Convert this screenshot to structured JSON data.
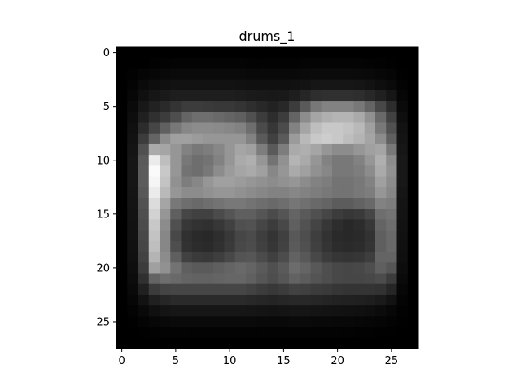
{
  "chart_data": {
    "type": "heatmap",
    "title": "drums_1",
    "colormap": "gray",
    "x_ticks": [
      "0",
      "5",
      "10",
      "15",
      "20",
      "25"
    ],
    "y_ticks": [
      "0",
      "5",
      "10",
      "15",
      "20",
      "25"
    ],
    "x_range": [
      -0.5,
      27.5
    ],
    "y_range": [
      -0.5,
      27.5
    ],
    "value_range": [
      0,
      255
    ],
    "z": [
      [
        0,
        0,
        0,
        0,
        0,
        0,
        0,
        0,
        0,
        0,
        0,
        0,
        0,
        0,
        0,
        0,
        0,
        0,
        0,
        0,
        0,
        0,
        0,
        0,
        0,
        0,
        0,
        0
      ],
      [
        0,
        0,
        0,
        2,
        3,
        4,
        4,
        4,
        4,
        4,
        4,
        4,
        3,
        3,
        3,
        3,
        3,
        4,
        4,
        4,
        4,
        4,
        4,
        3,
        2,
        1,
        0,
        0
      ],
      [
        0,
        2,
        5,
        7,
        9,
        10,
        10,
        10,
        10,
        10,
        10,
        10,
        9,
        9,
        9,
        9,
        9,
        10,
        11,
        11,
        11,
        11,
        10,
        9,
        7,
        5,
        1,
        0
      ],
      [
        0,
        4,
        10,
        14,
        16,
        18,
        18,
        18,
        18,
        18,
        18,
        17,
        16,
        16,
        16,
        16,
        17,
        19,
        22,
        22,
        22,
        22,
        21,
        18,
        14,
        10,
        3,
        0
      ],
      [
        0,
        7,
        16,
        22,
        26,
        30,
        30,
        30,
        30,
        30,
        30,
        28,
        26,
        25,
        24,
        25,
        30,
        38,
        46,
        48,
        48,
        48,
        46,
        40,
        32,
        22,
        6,
        0
      ],
      [
        0,
        10,
        24,
        34,
        42,
        52,
        60,
        60,
        58,
        56,
        56,
        52,
        46,
        40,
        34,
        40,
        60,
        90,
        120,
        130,
        130,
        130,
        120,
        100,
        72,
        45,
        10,
        0
      ],
      [
        0,
        13,
        32,
        48,
        60,
        78,
        100,
        110,
        110,
        105,
        100,
        95,
        80,
        60,
        45,
        60,
        100,
        140,
        165,
        175,
        180,
        180,
        170,
        145,
        105,
        65,
        14,
        0
      ],
      [
        0,
        16,
        44,
        70,
        96,
        120,
        135,
        140,
        140,
        138,
        135,
        130,
        110,
        75,
        55,
        75,
        130,
        165,
        190,
        200,
        200,
        195,
        185,
        160,
        120,
        80,
        18,
        0
      ],
      [
        0,
        18,
        60,
        100,
        140,
        160,
        160,
        155,
        150,
        150,
        150,
        150,
        130,
        90,
        65,
        90,
        155,
        185,
        200,
        205,
        200,
        190,
        180,
        165,
        140,
        95,
        20,
        0
      ],
      [
        0,
        20,
        80,
        170,
        165,
        150,
        130,
        120,
        125,
        135,
        150,
        165,
        160,
        125,
        90,
        125,
        170,
        175,
        165,
        150,
        140,
        140,
        150,
        160,
        165,
        120,
        22,
        0
      ],
      [
        0,
        22,
        90,
        235,
        190,
        150,
        120,
        110,
        115,
        130,
        150,
        170,
        175,
        150,
        115,
        145,
        180,
        170,
        150,
        130,
        120,
        120,
        130,
        150,
        175,
        140,
        24,
        0
      ],
      [
        0,
        22,
        92,
        250,
        200,
        150,
        115,
        110,
        120,
        140,
        155,
        165,
        170,
        160,
        135,
        150,
        170,
        160,
        145,
        135,
        120,
        120,
        125,
        140,
        170,
        145,
        24,
        0
      ],
      [
        0,
        22,
        92,
        245,
        195,
        145,
        125,
        135,
        150,
        160,
        160,
        155,
        150,
        145,
        140,
        145,
        150,
        140,
        130,
        125,
        115,
        115,
        120,
        130,
        160,
        140,
        24,
        0
      ],
      [
        0,
        21,
        88,
        235,
        185,
        150,
        140,
        140,
        145,
        150,
        150,
        145,
        140,
        135,
        130,
        130,
        135,
        130,
        125,
        120,
        115,
        115,
        120,
        125,
        150,
        135,
        22,
        0
      ],
      [
        0,
        20,
        82,
        220,
        165,
        120,
        110,
        105,
        110,
        115,
        120,
        120,
        115,
        110,
        105,
        110,
        118,
        112,
        105,
        100,
        92,
        92,
        98,
        105,
        130,
        125,
        20,
        0
      ],
      [
        0,
        19,
        78,
        210,
        150,
        95,
        70,
        65,
        65,
        75,
        85,
        95,
        95,
        85,
        75,
        85,
        100,
        90,
        80,
        70,
        60,
        55,
        58,
        70,
        110,
        115,
        19,
        0
      ],
      [
        0,
        18,
        75,
        200,
        140,
        80,
        55,
        50,
        48,
        55,
        65,
        80,
        82,
        70,
        60,
        72,
        95,
        82,
        68,
        55,
        45,
        40,
        44,
        55,
        100,
        110,
        18,
        0
      ],
      [
        0,
        18,
        72,
        195,
        135,
        72,
        48,
        42,
        40,
        46,
        56,
        70,
        75,
        62,
        52,
        64,
        88,
        78,
        62,
        50,
        42,
        40,
        42,
        50,
        95,
        105,
        17,
        0
      ],
      [
        0,
        17,
        70,
        190,
        135,
        78,
        50,
        44,
        42,
        48,
        58,
        72,
        76,
        64,
        54,
        66,
        90,
        80,
        64,
        52,
        44,
        42,
        44,
        52,
        95,
        105,
        16,
        0
      ],
      [
        0,
        16,
        66,
        180,
        140,
        95,
        65,
        58,
        56,
        62,
        72,
        84,
        86,
        75,
        64,
        76,
        98,
        88,
        72,
        60,
        54,
        52,
        54,
        62,
        100,
        100,
        15,
        0
      ],
      [
        0,
        14,
        60,
        160,
        145,
        115,
        95,
        90,
        90,
        95,
        100,
        105,
        100,
        90,
        80,
        90,
        108,
        100,
        88,
        78,
        72,
        70,
        72,
        78,
        95,
        85,
        13,
        0
      ],
      [
        0,
        12,
        48,
        100,
        110,
        105,
        100,
        98,
        98,
        100,
        102,
        102,
        96,
        86,
        78,
        86,
        98,
        92,
        84,
        78,
        72,
        70,
        70,
        72,
        76,
        60,
        10,
        0
      ],
      [
        0,
        9,
        32,
        60,
        68,
        70,
        70,
        70,
        70,
        70,
        70,
        70,
        66,
        60,
        56,
        60,
        66,
        64,
        60,
        58,
        54,
        52,
        52,
        52,
        50,
        38,
        7,
        0
      ],
      [
        0,
        6,
        18,
        32,
        38,
        42,
        42,
        42,
        42,
        42,
        42,
        42,
        40,
        38,
        36,
        38,
        40,
        40,
        38,
        36,
        34,
        33,
        32,
        30,
        26,
        18,
        4,
        0
      ],
      [
        0,
        3,
        9,
        16,
        20,
        22,
        22,
        22,
        22,
        22,
        22,
        22,
        21,
        20,
        19,
        20,
        21,
        21,
        20,
        19,
        18,
        17,
        16,
        14,
        11,
        7,
        2,
        0
      ],
      [
        0,
        1,
        4,
        7,
        9,
        10,
        10,
        10,
        10,
        10,
        10,
        10,
        10,
        9,
        9,
        9,
        10,
        10,
        9,
        9,
        8,
        8,
        7,
        6,
        5,
        3,
        1,
        0
      ],
      [
        0,
        0,
        1,
        2,
        3,
        3,
        3,
        3,
        3,
        3,
        3,
        3,
        3,
        3,
        3,
        3,
        3,
        3,
        3,
        3,
        3,
        3,
        2,
        2,
        1,
        1,
        0,
        0
      ],
      [
        0,
        0,
        0,
        0,
        0,
        0,
        0,
        0,
        0,
        0,
        0,
        0,
        0,
        0,
        0,
        0,
        0,
        0,
        0,
        0,
        0,
        0,
        0,
        0,
        0,
        0,
        0,
        0
      ]
    ]
  }
}
